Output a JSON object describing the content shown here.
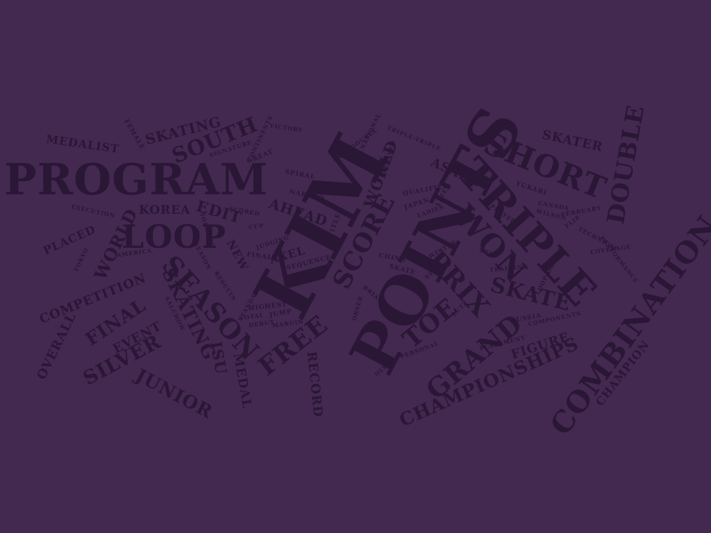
{
  "word_cloud": {
    "color": "#2a1635",
    "background": "#432850",
    "words": [
      "PROGRAM",
      "KIM",
      "POINTS",
      "TRIPLE",
      "SHORT",
      "COMBINATION",
      "SEASON",
      "LOOP",
      "FREE",
      "SCORE",
      "WON",
      "GRAND",
      "PRIX",
      "TOE",
      "SKATE",
      "SKATING",
      "CHAMPIONSHIPS",
      "SOUTH",
      "DOUBLE",
      "SILVER",
      "JUNIOR",
      "FINAL",
      "WORLD",
      "WORLD",
      "SKATING",
      "MEDALIST",
      "SKATER",
      "ASADA",
      "EDIT",
      "AHEAD",
      "KOREA",
      "ISU",
      "MEDAL",
      "RECORD",
      "COMPETITION",
      "OVERALL",
      "PLACED",
      "EVENT",
      "FIGURE",
      "CHAMPION",
      "AXEL",
      "NEW",
      "FEMALE",
      "YUKARI",
      "RUSSIA",
      "JAPAN",
      "OLYMPIC",
      "PERSONAL",
      "PLACEMENT",
      "COMPONENTS",
      "CANADA",
      "CHINA",
      "QUALIFIED",
      "SPIRAL",
      "VICTORY",
      "SEQUENCE",
      "FEBRUARY",
      "TECHNICAL",
      "JUMP",
      "SALCHOW",
      "LUTZ",
      "FLIP",
      "SPIN",
      "TITLE",
      "TORONTO",
      "CUP",
      "TOKYO",
      "NAKANO",
      "SKATE",
      "JUDGING",
      "EXECUTION",
      "LADIES",
      "AMERICA",
      "COVERAGE",
      "PERFORMANCE",
      "TRAINING",
      "RESULTS",
      "RECEIVED",
      "SCORED",
      "GREAT",
      "HIGHEST",
      "EXPECTED",
      "STEP",
      "TRIPLE-TRIPLE",
      "AXEL-DOUBLE",
      "LOOP-DOUBLE",
      "SIGNATURE",
      "CONTINENTS",
      "NATIONAL",
      "BRIAN",
      "ORSER",
      "WILSON",
      "LATE",
      "DEBUT",
      "MARGIN",
      "FINALE",
      "SEASON",
      "STANDARD",
      "TOTAL",
      "WINTER"
    ]
  }
}
